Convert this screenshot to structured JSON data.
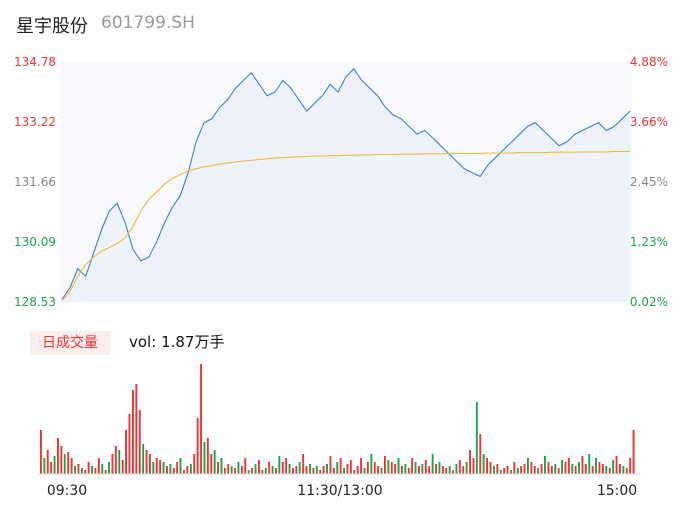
{
  "header": {
    "name": "星宇股份",
    "code": "601799.SH"
  },
  "volume": {
    "tag": "日成交量",
    "label": "vol:",
    "value": "1.87万手"
  },
  "colors": {
    "price": "#3b7ddd",
    "avg": "#f0b93a",
    "up": "#e33",
    "down": "#1aa34a",
    "neutral": "#888"
  },
  "chart_data": [
    {
      "type": "line",
      "y_left_ticks": [
        "134.78",
        "133.22",
        "131.66",
        "130.09",
        "128.53"
      ],
      "y_right_ticks": [
        "4.88%",
        "3.66%",
        "2.45%",
        "1.23%",
        "0.02%"
      ],
      "ylim": [
        128.53,
        134.78
      ],
      "x_ticks": [
        "09:30",
        "11:30/13:00",
        "15:00"
      ],
      "series": [
        {
          "values": [
            128.6,
            128.9,
            129.4,
            129.2,
            129.8,
            130.4,
            130.9,
            131.1,
            130.6,
            129.9,
            129.6,
            129.7,
            130.1,
            130.6,
            131.0,
            131.3,
            131.9,
            132.7,
            133.2,
            133.3,
            133.6,
            133.8,
            134.1,
            134.3,
            134.5,
            134.2,
            133.9,
            134.0,
            134.3,
            134.1,
            133.8,
            133.5,
            133.7,
            133.9,
            134.2,
            134.0,
            134.4,
            134.6,
            134.3,
            134.1,
            133.9,
            133.6,
            133.4,
            133.3,
            133.1,
            132.9,
            133.0,
            132.8,
            132.6,
            132.4,
            132.2,
            132.0,
            131.9,
            131.8,
            132.1,
            132.3,
            132.5,
            132.7,
            132.9,
            133.1,
            133.2,
            133.0,
            132.8,
            132.6,
            132.7,
            132.9,
            133.0,
            133.1,
            133.2,
            133.0,
            133.1,
            133.3,
            133.5
          ]
        },
        {
          "values": [
            128.55,
            128.8,
            129.2,
            129.5,
            129.7,
            129.85,
            129.95,
            130.05,
            130.2,
            130.5,
            130.9,
            131.2,
            131.4,
            131.6,
            131.75,
            131.85,
            131.95,
            132.0,
            132.05,
            132.08,
            132.12,
            132.15,
            132.18,
            132.2,
            132.22,
            132.24,
            132.26,
            132.28,
            132.29,
            132.3,
            132.31,
            132.32,
            132.33,
            132.33,
            132.34,
            132.34,
            132.35,
            132.35,
            132.36,
            132.36,
            132.37,
            132.37,
            132.37,
            132.38,
            132.38,
            132.38,
            132.39,
            132.39,
            132.39,
            132.4,
            132.4,
            132.4,
            132.4,
            132.4,
            132.41,
            132.41,
            132.41,
            132.41,
            132.42,
            132.42,
            132.42,
            132.42,
            132.43,
            132.43,
            132.43,
            132.43,
            132.44,
            132.44,
            132.44,
            132.44,
            132.45,
            132.45,
            132.45
          ]
        }
      ]
    },
    {
      "type": "bar",
      "values": [
        22,
        8,
        12,
        6,
        9,
        18,
        14,
        10,
        11,
        8,
        4,
        5,
        3,
        2,
        6,
        4,
        3,
        8,
        5,
        2,
        6,
        10,
        14,
        12,
        7,
        22,
        30,
        42,
        45,
        32,
        15,
        12,
        10,
        6,
        8,
        7,
        6,
        4,
        5,
        3,
        6,
        8,
        2,
        4,
        5,
        10,
        28,
        55,
        16,
        18,
        10,
        12,
        6,
        8,
        3,
        5,
        4,
        3,
        6,
        4,
        8,
        2,
        3,
        5,
        7,
        2,
        3,
        6,
        4,
        3,
        9,
        6,
        8,
        5,
        3,
        4,
        6,
        10,
        4,
        5,
        3,
        4,
        2,
        4,
        5,
        9,
        3,
        6,
        8,
        3,
        5,
        7,
        2,
        4,
        8,
        3,
        6,
        10,
        6,
        4,
        3,
        9,
        7,
        6,
        5,
        8,
        4,
        5,
        3,
        8,
        6,
        4,
        5,
        7,
        4,
        10,
        5,
        6,
        4,
        3,
        4,
        2,
        5,
        7,
        4,
        6,
        12,
        8,
        36,
        20,
        10,
        8,
        6,
        4,
        5,
        2,
        3,
        4,
        2,
        6,
        3,
        4,
        5,
        8,
        6,
        4,
        3,
        5,
        9,
        6,
        4,
        5,
        3,
        7,
        6,
        8,
        5,
        4,
        6,
        9,
        5,
        10,
        4,
        8,
        6,
        5,
        4,
        3,
        7,
        9,
        5,
        4,
        3,
        8,
        22
      ],
      "bar_colors": [
        "up",
        "down",
        "up",
        "up",
        "down",
        "up",
        "up",
        "down",
        "up",
        "up",
        "down",
        "up",
        "down",
        "up",
        "up",
        "down",
        "up",
        "up",
        "down",
        "up",
        "down",
        "up",
        "up",
        "down",
        "up",
        "up",
        "up",
        "up",
        "up",
        "up",
        "down",
        "up",
        "up",
        "down",
        "up",
        "up",
        "down",
        "up",
        "down",
        "up",
        "up",
        "down",
        "up",
        "up",
        "down",
        "up",
        "up",
        "up",
        "down",
        "up",
        "up",
        "down",
        "up",
        "down",
        "up",
        "up",
        "down",
        "up",
        "down",
        "up",
        "up",
        "down",
        "up",
        "down",
        "up",
        "up",
        "down",
        "up",
        "down",
        "up",
        "down",
        "up",
        "up",
        "down",
        "up",
        "up",
        "down",
        "up",
        "up",
        "down",
        "up",
        "down",
        "up",
        "up",
        "down",
        "up",
        "up",
        "down",
        "up",
        "down",
        "up",
        "up",
        "down",
        "up",
        "up",
        "down",
        "up",
        "down",
        "up",
        "up",
        "down",
        "up",
        "down",
        "up",
        "up",
        "down",
        "up",
        "down",
        "up",
        "up",
        "down",
        "up",
        "down",
        "up",
        "up",
        "down",
        "up",
        "down",
        "up",
        "up",
        "down",
        "up",
        "down",
        "up",
        "up",
        "down",
        "up",
        "up",
        "down",
        "up",
        "down",
        "up",
        "up",
        "down",
        "up",
        "down",
        "up",
        "up",
        "down",
        "up",
        "down",
        "up",
        "up",
        "down",
        "up",
        "up",
        "down",
        "up",
        "down",
        "up",
        "up",
        "down",
        "up",
        "down",
        "up",
        "up",
        "down",
        "up",
        "down",
        "up",
        "up",
        "down",
        "up",
        "down",
        "up",
        "up",
        "down",
        "up",
        "down",
        "up",
        "up",
        "down",
        "up",
        "up",
        "up"
      ]
    }
  ]
}
